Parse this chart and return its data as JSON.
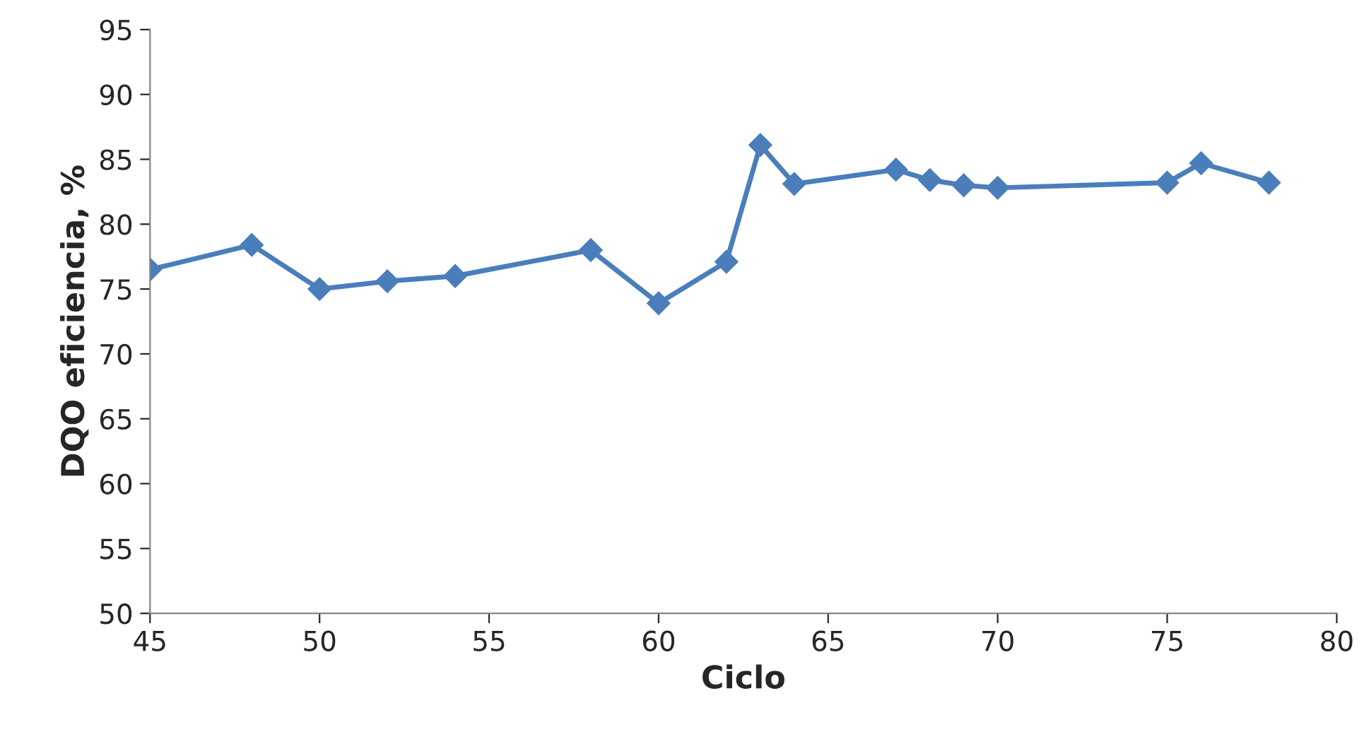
{
  "chart_data": {
    "type": "line",
    "xlabel": "Ciclo",
    "ylabel": "DQO eficiencia, %",
    "x": [
      45,
      48,
      50,
      52,
      54,
      58,
      60,
      62,
      63,
      64,
      67,
      68,
      69,
      70,
      75,
      76,
      78
    ],
    "series": [
      {
        "color": "#4a7ebb",
        "values": [
          76.5,
          78.4,
          75.0,
          75.6,
          76.0,
          78.0,
          73.9,
          77.1,
          86.1,
          83.1,
          84.2,
          83.4,
          83.0,
          82.8,
          83.2,
          84.7,
          83.2
        ]
      }
    ],
    "xlim": [
      45,
      80
    ],
    "xticks": [
      45,
      50,
      55,
      60,
      65,
      70,
      75,
      80
    ],
    "ylim": [
      50,
      95
    ],
    "yticks": [
      50,
      55,
      60,
      65,
      70,
      75,
      80,
      85,
      90,
      95
    ],
    "marker": "diamond",
    "line_style": "solid",
    "grid": false,
    "legend": false
  }
}
